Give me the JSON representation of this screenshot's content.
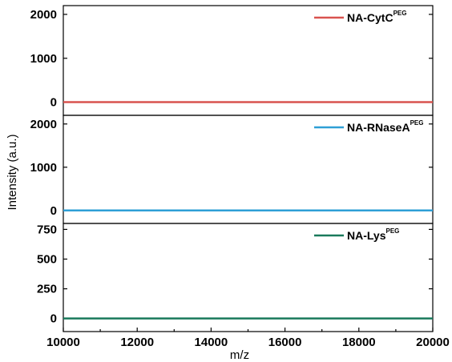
{
  "chart_data": {
    "type": "line",
    "xlabel": "m/z",
    "ylabel": "Intensity (a.u.)",
    "xlim": [
      10000,
      20000
    ],
    "xticks": [
      "10000",
      "12000",
      "14000",
      "16000",
      "18000",
      "20000"
    ],
    "panels": [
      {
        "series": [
          {
            "name": "NA-CytC",
            "name_sup": "PEG",
            "color": "#d9534f",
            "x": [
              10000,
              20000
            ],
            "y": [
              0,
              0
            ]
          }
        ],
        "ylim": [
          -300,
          2200
        ],
        "yticks": [
          0,
          1000,
          2000
        ],
        "ytick_labels": [
          "0",
          "1000",
          "2000"
        ]
      },
      {
        "series": [
          {
            "name": "NA-RNaseA",
            "name_sup": "PEG",
            "color": "#2e9fd6",
            "x": [
              10000,
              20000
            ],
            "y": [
              0,
              0
            ]
          }
        ],
        "ylim": [
          -300,
          2200
        ],
        "yticks": [
          0,
          1000,
          2000
        ],
        "ytick_labels": [
          "0",
          "1000",
          "2000"
        ]
      },
      {
        "series": [
          {
            "name": "NA-Lys",
            "name_sup": "PEG",
            "color": "#1a7a5c",
            "x": [
              10000,
              20000
            ],
            "y": [
              0,
              0
            ]
          }
        ],
        "ylim": [
          -110,
          800
        ],
        "yticks": [
          0,
          250,
          500,
          750
        ],
        "ytick_labels": [
          "0",
          "250",
          "500",
          "750"
        ]
      }
    ],
    "grid": false,
    "legend_position": "top-right"
  }
}
